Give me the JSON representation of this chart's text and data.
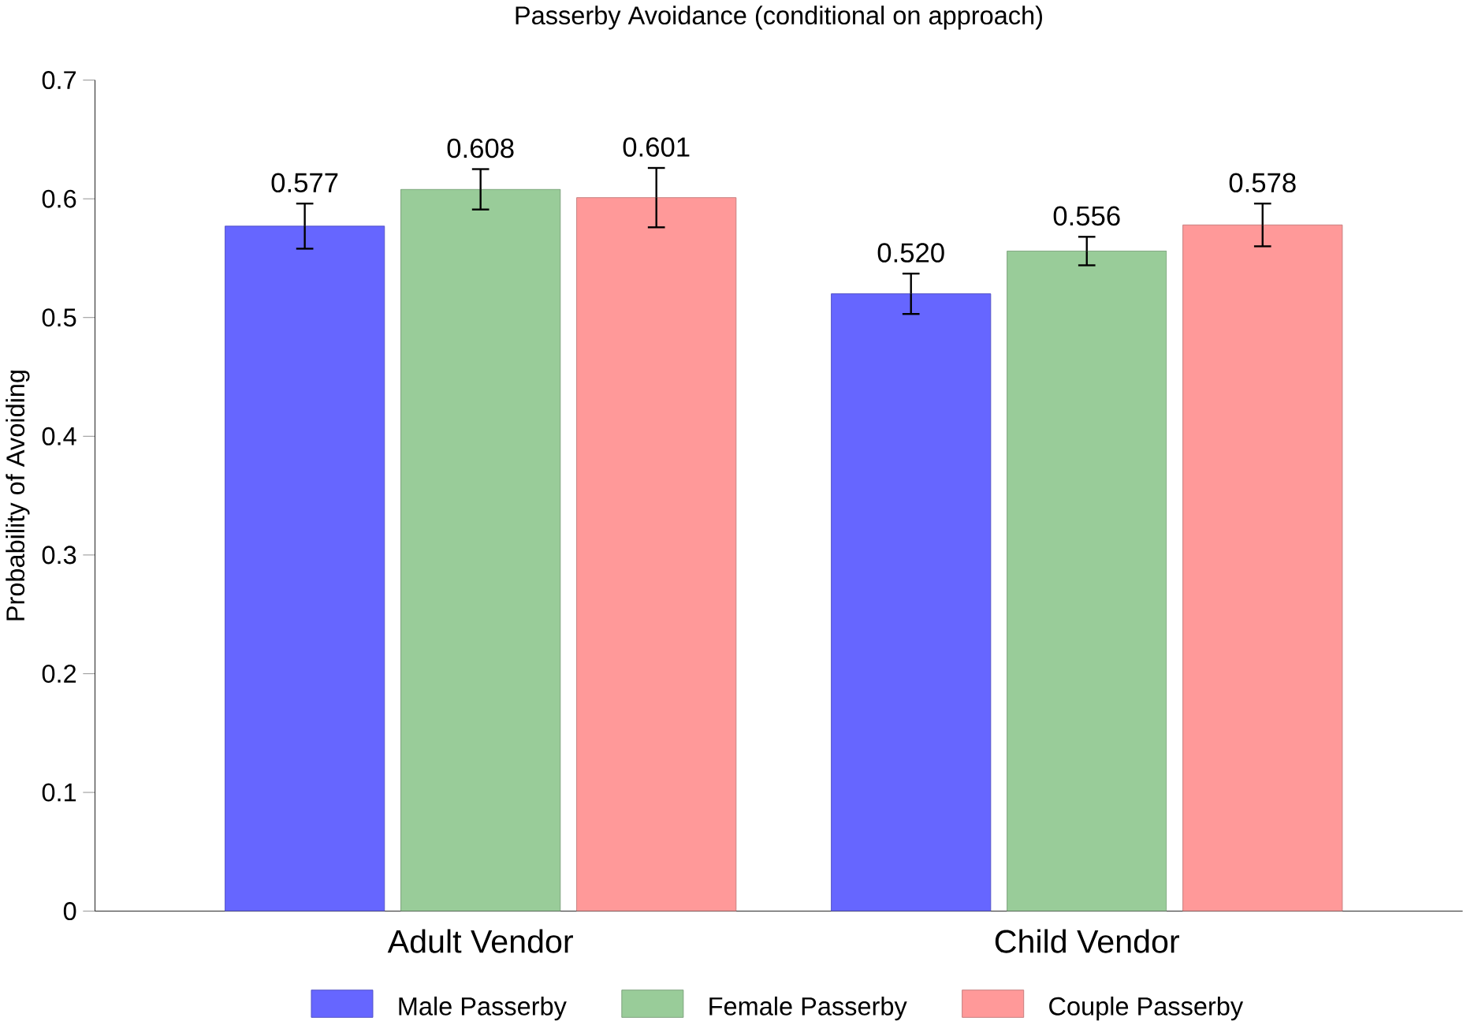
{
  "chart_data": {
    "type": "bar",
    "title": "Passerby Avoidance (conditional on approach)",
    "ylabel": "Probability of Avoiding",
    "categories": [
      "Adult Vendor",
      "Child Vendor"
    ],
    "series": [
      {
        "name": "Male Passerby",
        "color": "#6666ff",
        "values": [
          0.577,
          0.52
        ],
        "errors": [
          0.019,
          0.017
        ],
        "value_labels": [
          "0.577",
          "0.520"
        ]
      },
      {
        "name": "Female Passerby",
        "color": "#99cc99",
        "values": [
          0.608,
          0.556
        ],
        "errors": [
          0.017,
          0.012
        ],
        "value_labels": [
          "0.608",
          "0.556"
        ]
      },
      {
        "name": "Couple Passerby",
        "color": "#ff9999",
        "values": [
          0.601,
          0.578
        ],
        "errors": [
          0.025,
          0.018
        ],
        "value_labels": [
          "0.601",
          "0.578"
        ]
      }
    ],
    "ylim": [
      0,
      0.7
    ],
    "yticks": [
      0,
      0.1,
      0.2,
      0.3,
      0.4,
      0.5,
      0.6,
      0.7
    ],
    "legend": "bottom"
  }
}
